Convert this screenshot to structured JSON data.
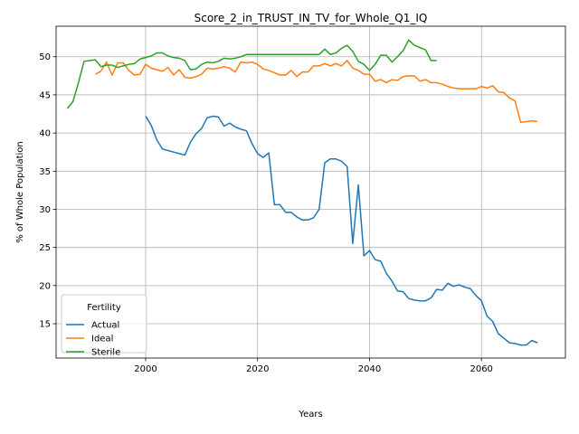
{
  "chart_data": {
    "type": "line",
    "title": "Score_2_in_TRUST_IN_TV_for_Whole_Q1_IQ",
    "xlabel": "Years",
    "ylabel": "% of Whole Population",
    "xlim": [
      1984,
      2075
    ],
    "ylim": [
      10.5,
      54
    ],
    "xticks": [
      2000,
      2020,
      2040,
      2060
    ],
    "yticks": [
      15,
      20,
      25,
      30,
      35,
      40,
      45,
      50
    ],
    "grid": true,
    "legend": {
      "title": "Fertility",
      "placement": "lower-left"
    },
    "colors": {
      "Actual": "#1f77b4",
      "Ideal": "#ff7f0e",
      "Sterile": "#2ca02c"
    },
    "series": [
      {
        "name": "Actual",
        "x": [
          2000,
          2001,
          2002,
          2003,
          2004,
          2005,
          2006,
          2007,
          2008,
          2009,
          2010,
          2011,
          2012,
          2013,
          2014,
          2015,
          2016,
          2017,
          2018,
          2019,
          2020,
          2021,
          2022,
          2023,
          2024,
          2025,
          2026,
          2027,
          2028,
          2029,
          2030,
          2031,
          2032,
          2033,
          2034,
          2035,
          2036,
          2037,
          2038,
          2039,
          2040,
          2041,
          2042,
          2043,
          2044,
          2045,
          2046,
          2047,
          2048,
          2049,
          2050,
          2051,
          2052,
          2053,
          2054,
          2055,
          2056,
          2057,
          2058,
          2059,
          2060,
          2061,
          2062,
          2063,
          2064,
          2065,
          2066,
          2067,
          2068,
          2069,
          2070
        ],
        "values": [
          42.2,
          41.0,
          39.1,
          37.9,
          37.7,
          37.5,
          37.3,
          37.1,
          38.8,
          39.9,
          40.6,
          42.0,
          42.2,
          42.1,
          40.9,
          41.3,
          40.8,
          40.5,
          40.3,
          38.6,
          37.3,
          36.8,
          37.4,
          30.6,
          30.6,
          29.6,
          29.6,
          29.0,
          28.6,
          28.6,
          28.9,
          30.0,
          36.1,
          36.6,
          36.6,
          36.3,
          35.6,
          25.5,
          33.2,
          23.9,
          24.6,
          23.4,
          23.2,
          21.6,
          20.6,
          19.3,
          19.2,
          18.3,
          18.1,
          18.0,
          18.0,
          18.4,
          19.5,
          19.4,
          20.3,
          19.9,
          20.1,
          19.8,
          19.6,
          18.7,
          18.0,
          16.0,
          15.3,
          13.7,
          13.1,
          12.5,
          12.4,
          12.2,
          12.2,
          12.8,
          12.5
        ]
      },
      {
        "name": "Ideal",
        "x": [
          1991,
          1992,
          1993,
          1994,
          1995,
          1996,
          1997,
          1998,
          1999,
          2000,
          2001,
          2002,
          2003,
          2004,
          2005,
          2006,
          2007,
          2008,
          2009,
          2010,
          2011,
          2012,
          2013,
          2014,
          2015,
          2016,
          2017,
          2018,
          2019,
          2020,
          2021,
          2022,
          2023,
          2024,
          2025,
          2026,
          2027,
          2028,
          2029,
          2030,
          2031,
          2032,
          2033,
          2034,
          2035,
          2036,
          2037,
          2038,
          2039,
          2040,
          2041,
          2042,
          2043,
          2044,
          2045,
          2046,
          2047,
          2048,
          2049,
          2050,
          2051,
          2052,
          2053,
          2054,
          2055,
          2056,
          2057,
          2058,
          2059,
          2060,
          2061,
          2062,
          2063,
          2064,
          2065,
          2066,
          2067,
          2068,
          2069,
          2070
        ],
        "values": [
          47.7,
          48.1,
          49.3,
          47.6,
          49.2,
          49.2,
          48.2,
          47.6,
          47.7,
          49.0,
          48.5,
          48.3,
          48.1,
          48.6,
          47.6,
          48.3,
          47.3,
          47.2,
          47.4,
          47.7,
          48.5,
          48.4,
          48.5,
          48.7,
          48.5,
          48.0,
          49.3,
          49.2,
          49.3,
          49.0,
          48.4,
          48.2,
          47.9,
          47.6,
          47.6,
          48.2,
          47.4,
          48.0,
          48.0,
          48.8,
          48.8,
          49.1,
          48.8,
          49.1,
          48.8,
          49.5,
          48.5,
          48.2,
          47.7,
          47.7,
          46.8,
          47.0,
          46.6,
          47.0,
          46.9,
          47.4,
          47.5,
          47.5,
          46.8,
          47.0,
          46.6,
          46.6,
          46.4,
          46.1,
          45.9,
          45.8,
          45.8,
          45.8,
          45.8,
          46.1,
          45.9,
          46.2,
          45.4,
          45.3,
          44.6,
          44.2,
          41.4,
          41.5,
          41.6,
          41.5
        ]
      },
      {
        "name": "Sterile",
        "x": [
          1986,
          1987,
          1988,
          1989,
          1990,
          1991,
          1992,
          1993,
          1994,
          1995,
          1996,
          1997,
          1998,
          1999,
          2000,
          2001,
          2002,
          2003,
          2004,
          2005,
          2006,
          2007,
          2008,
          2009,
          2010,
          2011,
          2012,
          2013,
          2014,
          2015,
          2016,
          2017,
          2018,
          2019,
          2020,
          2021,
          2022,
          2023,
          2024,
          2025,
          2026,
          2027,
          2028,
          2029,
          2030,
          2031,
          2032,
          2033,
          2034,
          2035,
          2036,
          2037,
          2038,
          2039,
          2040,
          2041,
          2042,
          2043,
          2044,
          2045,
          2046,
          2047,
          2048,
          2049,
          2050,
          2051,
          2052
        ],
        "values": [
          43.2,
          44.1,
          46.6,
          49.4,
          49.5,
          49.6,
          48.7,
          48.9,
          48.9,
          48.6,
          48.8,
          49.0,
          49.1,
          49.7,
          49.9,
          50.1,
          50.5,
          50.5,
          50.1,
          49.9,
          49.8,
          49.5,
          48.3,
          48.4,
          49.0,
          49.3,
          49.2,
          49.4,
          49.8,
          49.7,
          49.8,
          50.0,
          50.3,
          50.3,
          50.3,
          50.3,
          50.3,
          50.3,
          50.3,
          50.3,
          50.3,
          50.3,
          50.3,
          50.3,
          50.3,
          50.3,
          51.0,
          50.3,
          50.5,
          51.1,
          51.5,
          50.7,
          49.4,
          49.0,
          48.2,
          49.0,
          50.2,
          50.2,
          49.3,
          50.0,
          50.8,
          52.2,
          51.5,
          51.2,
          50.9,
          49.5,
          49.5
        ]
      }
    ]
  }
}
